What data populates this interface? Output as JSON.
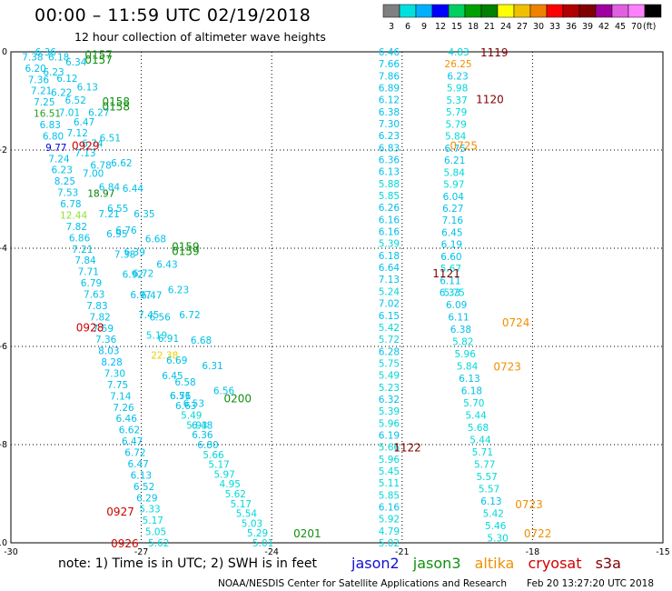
{
  "header": {
    "title": "00:00 – 11:59 UTC 02/19/2018",
    "subtitle": "12 hour collection of altimeter wave heights"
  },
  "footer": {
    "note": "note: 1) Time is in UTC; 2) SWH is in feet",
    "credit": "NOAA/NESDIS Center for Satellite Applications and Research",
    "timestamp": "Feb 20 13:27:20 UTC 2018",
    "satellites": [
      {
        "name": "jason2",
        "color": "#1010d0"
      },
      {
        "name": "jason3",
        "color": "#109010"
      },
      {
        "name": "altika",
        "color": "#f09000"
      },
      {
        "name": "cryosat",
        "color": "#d00000"
      },
      {
        "name": "s3a",
        "color": "#800000"
      }
    ]
  },
  "colorbar": {
    "ticks": [
      "3",
      "6",
      "9",
      "12",
      "15",
      "18",
      "21",
      "24",
      "27",
      "30",
      "33",
      "36",
      "39",
      "42",
      "45",
      "70",
      "(ft)"
    ],
    "colors": [
      "#808080",
      "#00e0e0",
      "#00b0ff",
      "#0000ff",
      "#00d060",
      "#00a000",
      "#008000",
      "#ffff00",
      "#f0c000",
      "#f08000",
      "#ff0000",
      "#b00000",
      "#800000",
      "#a000a0",
      "#e060e0",
      "#ff80ff",
      "#000000"
    ]
  },
  "chart_data": {
    "type": "scatter",
    "title": "00:00 – 11:59 UTC 02/19/2018",
    "xlim": [
      -30,
      -15
    ],
    "ylim": [
      -10,
      0
    ],
    "xticks": [
      "-30",
      "-27",
      "-24",
      "-21",
      "-18",
      "-15"
    ],
    "yticks": [
      "0",
      "-2",
      "-4",
      "-6",
      "-8",
      "-10"
    ],
    "grid": true,
    "tracks": [
      {
        "x0": -29.5,
        "y0": -0.1,
        "x1": -26.6,
        "y1": -10.0,
        "values": [
          "7.38",
          "6.20",
          "7.36",
          "7.21",
          "7.25",
          "16.51",
          "6.83",
          "6.80",
          "9.77",
          "7.24",
          "6.23",
          "8.25",
          "7.53",
          "6.78",
          "12.44",
          "7.82",
          "6.86",
          "7.21",
          "7.84",
          "7.71",
          "6.79",
          "7.63",
          "7.83",
          "7.82",
          "7.59",
          "7.36",
          "8.03",
          "8.28",
          "7.30",
          "7.75",
          "7.14",
          "7.26",
          "6.46",
          "6.62",
          "6.47",
          "6.72",
          "6.47",
          "6.13",
          "6.52",
          "6.29",
          "5.33",
          "5.17",
          "5.05",
          "5.62"
        ]
      },
      {
        "x0": -29.2,
        "y0": 0.0,
        "x1": -26.1,
        "y1": -7.0,
        "values": [
          "6.36",
          "6.23",
          "6.22",
          "7.01",
          "7.12",
          "7.13",
          "7.00",
          "18.97",
          "7.21",
          "6.95",
          "7.38",
          "6.92",
          "6.97",
          "7.45",
          "5.19",
          "22.38",
          "6.45",
          "6.71"
        ]
      },
      {
        "x0": -28.9,
        "y0": -0.1,
        "x1": -25.6,
        "y1": -7.6,
        "values": [
          "6.18",
          "6.12",
          "6.52",
          "6.47",
          "6.74",
          "6.78",
          "6.84",
          "6.55",
          "6.76",
          "6.39",
          "6.72",
          "6.47",
          "6.56",
          "6.91",
          "6.69",
          "6.58",
          "6.53",
          "6.48"
        ]
      },
      {
        "x0": -28.5,
        "y0": -0.2,
        "x1": -25.1,
        "y1": -6.9,
        "values": [
          "6.34",
          "6.13",
          "6.27",
          "6.51",
          "6.62",
          "6.44",
          "6.35",
          "6.68",
          "6.43",
          "6.23",
          "6.72",
          "6.68",
          "6.31",
          "6.56"
        ]
      },
      {
        "x0": -26.1,
        "y0": -7.0,
        "x1": -24.2,
        "y1": -10.0,
        "values": [
          "6.56",
          "6.63",
          "5.49",
          "5.93",
          "6.36",
          "6.80",
          "5.66",
          "5.17",
          "5.97",
          "4.95",
          "5.62",
          "5.17",
          "5.54",
          "5.03",
          "5.29",
          "5.01"
        ]
      },
      {
        "x0": -21.3,
        "y0": -0.0,
        "x1": -21.3,
        "y1": -10.0,
        "values": [
          "6.46",
          "7.66",
          "7.86",
          "6.89",
          "6.12",
          "6.38",
          "7.30",
          "6.23",
          "6.83",
          "6.36",
          "6.13",
          "5.88",
          "5.85",
          "6.26",
          "6.16",
          "6.16",
          "5.39",
          "6.18",
          "6.64",
          "7.13",
          "5.24",
          "7.02",
          "6.15",
          "5.42",
          "5.72",
          "6.28",
          "5.75",
          "5.49",
          "5.23",
          "6.32",
          "5.39",
          "5.96",
          "6.19",
          "5.66",
          "5.96",
          "5.45",
          "5.11",
          "5.85",
          "6.16",
          "5.92",
          "4.79",
          "5.02"
        ]
      },
      {
        "x0": -19.7,
        "y0": -0.0,
        "x1": -19.9,
        "y1": -4.9,
        "values": [
          "4.83",
          "26.25",
          "6.23",
          "5.98",
          "5.37",
          "5.79",
          "5.79",
          "5.84",
          "6.75",
          "6.21",
          "5.84",
          "5.97",
          "6.04",
          "6.27",
          "7.16",
          "6.45",
          "6.19",
          "6.60",
          "5.67",
          "6.11",
          "6.33"
        ]
      },
      {
        "x0": -19.8,
        "y0": -4.9,
        "x1": -18.8,
        "y1": -9.9,
        "values": [
          "5.75",
          "6.09",
          "6.11",
          "6.38",
          "5.82",
          "5.96",
          "5.84",
          "6.13",
          "6.18",
          "5.70",
          "5.44",
          "5.68",
          "5.44",
          "5.71",
          "5.77",
          "5.57",
          "5.57",
          "6.13",
          "5.42",
          "5.46",
          "5.30"
        ]
      }
    ],
    "time_labels": [
      {
        "text": "0157",
        "x": -28.3,
        "y": -0.05,
        "sat": "jason3"
      },
      {
        "text": "0157",
        "x": -28.3,
        "y": -0.15,
        "sat": "jason3"
      },
      {
        "text": "0158",
        "x": -27.9,
        "y": -1.0,
        "sat": "jason3"
      },
      {
        "text": "0158",
        "x": -27.9,
        "y": -1.1,
        "sat": "jason3"
      },
      {
        "text": "0929",
        "x": -28.6,
        "y": -1.9,
        "sat": "cryosat"
      },
      {
        "text": "0159",
        "x": -26.3,
        "y": -3.95,
        "sat": "jason3"
      },
      {
        "text": "0159",
        "x": -26.3,
        "y": -4.05,
        "sat": "jason3"
      },
      {
        "text": "0928",
        "x": -28.5,
        "y": -5.6,
        "sat": "cryosat"
      },
      {
        "text": "0200",
        "x": -25.1,
        "y": -7.05,
        "sat": "jason3"
      },
      {
        "text": "0927",
        "x": -27.8,
        "y": -9.35,
        "sat": "cryosat"
      },
      {
        "text": "0926",
        "x": -27.7,
        "y": -10.0,
        "sat": "cryosat"
      },
      {
        "text": "0201",
        "x": -23.5,
        "y": -9.8,
        "sat": "jason3"
      },
      {
        "text": "1119",
        "x": -19.2,
        "y": 0.0,
        "sat": "s3a"
      },
      {
        "text": "1120",
        "x": -19.3,
        "y": -0.95,
        "sat": "s3a"
      },
      {
        "text": "0725",
        "x": -19.9,
        "y": -1.9,
        "sat": "altika"
      },
      {
        "text": "1121",
        "x": -20.3,
        "y": -4.5,
        "sat": "s3a"
      },
      {
        "text": "0724",
        "x": -18.7,
        "y": -5.5,
        "sat": "altika"
      },
      {
        "text": "0723",
        "x": -18.9,
        "y": -6.4,
        "sat": "altika"
      },
      {
        "text": "1122",
        "x": -21.2,
        "y": -8.05,
        "sat": "s3a"
      },
      {
        "text": "0723",
        "x": -18.4,
        "y": -9.2,
        "sat": "altika"
      },
      {
        "text": "0722",
        "x": -18.2,
        "y": -9.8,
        "sat": "altika"
      }
    ]
  }
}
